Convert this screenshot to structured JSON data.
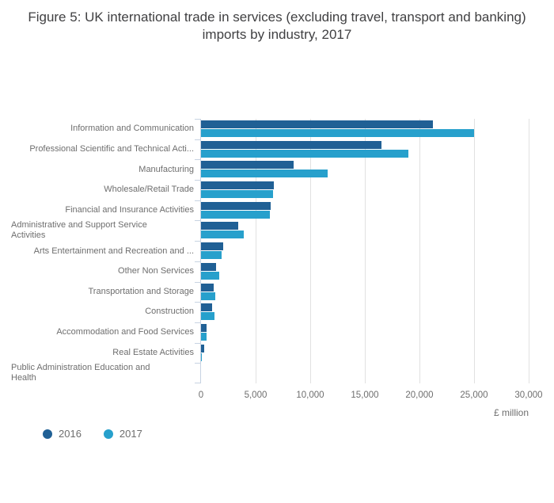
{
  "title": "Figure 5: UK international trade in services (excluding travel, transport and banking) imports by industry, 2017",
  "colors": {
    "background": "#ffffff",
    "title_text": "#404042",
    "label_text": "#6e6e6e",
    "gridline": "#e1e1e1",
    "axis_line": "#c7d3e2"
  },
  "x_axis": {
    "title": "£ million",
    "max": 30000,
    "ticks": [
      {
        "label": "0",
        "value": 0
      },
      {
        "label": "5,000",
        "value": 5000
      },
      {
        "label": "10,000",
        "value": 10000
      },
      {
        "label": "15,000",
        "value": 15000
      },
      {
        "label": "20,000",
        "value": 20000
      },
      {
        "label": "25,000",
        "value": 25000
      },
      {
        "label": "30,000",
        "value": 30000
      }
    ]
  },
  "chart_data": {
    "type": "bar",
    "orientation": "horizontal",
    "title": "Figure 5: UK international trade in services (excluding travel, transport and banking) imports by industry, 2017",
    "categories": [
      "Information and Communication",
      "Professional Scientific and Technical Acti...",
      "Manufacturing",
      "Wholesale/Retail Trade",
      "Financial and Insurance Activities",
      "Administrative and Support Service\nActivities",
      "Arts Entertainment and Recreation and ...",
      "Other Non Services",
      "Transportation and Storage",
      "Construction",
      "Accommodation and Food Services",
      "Real Estate Activities",
      "Public Administration Education and\nHealth"
    ],
    "series": [
      {
        "name": "2016",
        "color": "#206095",
        "values": [
          21200,
          16500,
          8500,
          6700,
          6400,
          3400,
          2000,
          1400,
          1150,
          1000,
          500,
          300,
          0
        ]
      },
      {
        "name": "2017",
        "color": "#27a0cc",
        "values": [
          25000,
          19000,
          11600,
          6600,
          6300,
          3900,
          1900,
          1700,
          1300,
          1200,
          500,
          100,
          0
        ]
      }
    ],
    "xlabel": "£ million",
    "ylabel": "",
    "xlim": [
      0,
      30000
    ],
    "grid": true,
    "legend_position": "bottom-left"
  }
}
